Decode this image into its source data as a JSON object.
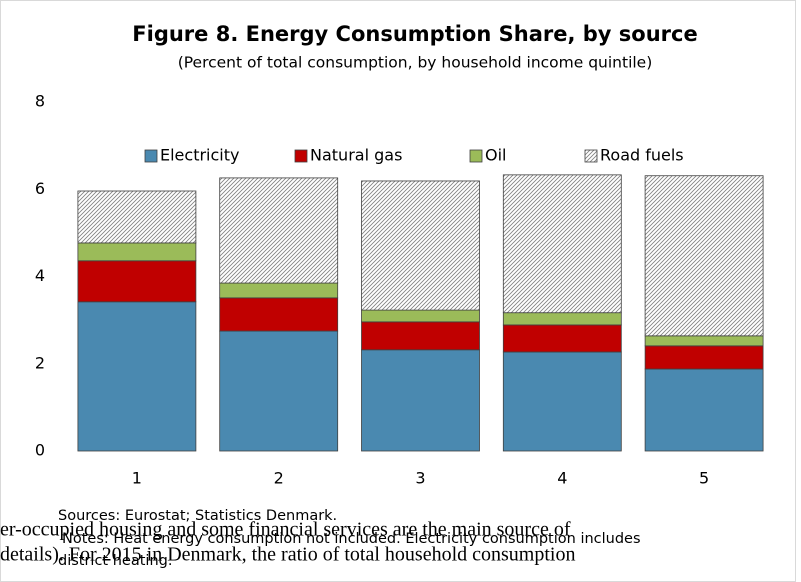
{
  "chart_data": {
    "type": "stacked_bar",
    "title": "Figure 8. Energy Consumption Share, by source",
    "subtitle": "(Percent of total consumption, by household income quintile)",
    "categories": [
      "1",
      "2",
      "3",
      "4",
      "5"
    ],
    "series": [
      {
        "name": "Electricity",
        "color": "#4a89b0",
        "values": [
          3.42,
          2.75,
          2.32,
          2.27,
          1.88
        ]
      },
      {
        "name": "Natural gas",
        "color": "#c00000",
        "values": [
          0.94,
          0.76,
          0.64,
          0.62,
          0.53
        ]
      },
      {
        "name": "Oil",
        "color": "#9bbb59",
        "values": [
          0.41,
          0.34,
          0.27,
          0.28,
          0.23
        ]
      },
      {
        "name": "Road fuels",
        "color": "#7f7f7f",
        "hatch": true,
        "values": [
          1.19,
          2.41,
          2.96,
          3.16,
          3.67
        ]
      }
    ],
    "ylim": [
      0,
      8
    ],
    "yticks": [
      0,
      2,
      4,
      6,
      8
    ],
    "grid": false,
    "legend": "top",
    "sources": "Sources: Eurostat; Statistics Denmark.",
    "notes": [
      "Notes: Heat energy consumption not included. Electricity consumption includes",
      "district heating."
    ]
  },
  "page_text": [
    "er-occupied housing and some financial services are the main source of",
    "details). For 2015 in Denmark, the ratio of total household consumption"
  ]
}
